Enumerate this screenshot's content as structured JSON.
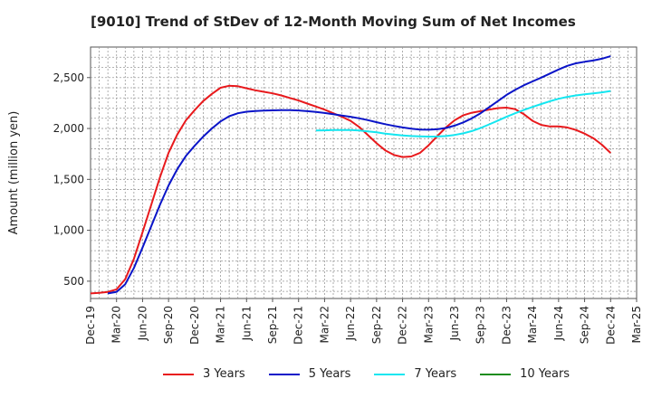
{
  "chart_data": {
    "type": "line",
    "title": "[9010]  Trend of StDev of 12-Month Moving Sum of Net Incomes",
    "ylabel": "Amount (million yen)",
    "xlabel": "",
    "ylim": [
      330,
      2800
    ],
    "yticks": [
      500,
      1000,
      1500,
      2000,
      2500
    ],
    "ytick_labels": [
      "500",
      "1,000",
      "1,500",
      "2,000",
      "2,500"
    ],
    "x_tick_labels": [
      "Dec-19",
      "Mar-20",
      "Jun-20",
      "Sep-20",
      "Dec-20",
      "Mar-21",
      "Jun-21",
      "Sep-21",
      "Dec-21",
      "Mar-22",
      "Jun-22",
      "Sep-22",
      "Dec-22",
      "Mar-23",
      "Jun-23",
      "Sep-23",
      "Dec-23",
      "Mar-24",
      "Jun-24",
      "Sep-24",
      "Dec-24",
      "Mar-25"
    ],
    "grid": true,
    "legend_position": "bottom",
    "series": [
      {
        "name": "3 Years",
        "color": "#e8191c",
        "points": [
          [
            "Dec-19",
            380
          ],
          [
            "Jan-20",
            385
          ],
          [
            "Feb-20",
            395
          ],
          [
            "Mar-20",
            420
          ],
          [
            "Apr-20",
            520
          ],
          [
            "May-20",
            720
          ],
          [
            "Jun-20",
            980
          ],
          [
            "Jul-20",
            1250
          ],
          [
            "Aug-20",
            1520
          ],
          [
            "Sep-20",
            1760
          ],
          [
            "Oct-20",
            1940
          ],
          [
            "Nov-20",
            2080
          ],
          [
            "Dec-20",
            2180
          ],
          [
            "Jan-21",
            2270
          ],
          [
            "Feb-21",
            2340
          ],
          [
            "Mar-21",
            2400
          ],
          [
            "Apr-21",
            2420
          ],
          [
            "May-21",
            2415
          ],
          [
            "Jun-21",
            2395
          ],
          [
            "Jul-21",
            2375
          ],
          [
            "Aug-21",
            2360
          ],
          [
            "Sep-21",
            2345
          ],
          [
            "Oct-21",
            2325
          ],
          [
            "Nov-21",
            2300
          ],
          [
            "Dec-21",
            2275
          ],
          [
            "Jan-22",
            2245
          ],
          [
            "Feb-22",
            2215
          ],
          [
            "Mar-22",
            2185
          ],
          [
            "Apr-22",
            2150
          ],
          [
            "May-22",
            2115
          ],
          [
            "Jun-22",
            2075
          ],
          [
            "Jul-22",
            2015
          ],
          [
            "Aug-22",
            1935
          ],
          [
            "Sep-22",
            1855
          ],
          [
            "Oct-22",
            1785
          ],
          [
            "Nov-22",
            1740
          ],
          [
            "Dec-22",
            1720
          ],
          [
            "Jan-23",
            1725
          ],
          [
            "Feb-23",
            1760
          ],
          [
            "Mar-23",
            1835
          ],
          [
            "Apr-23",
            1925
          ],
          [
            "May-23",
            2010
          ],
          [
            "Jun-23",
            2080
          ],
          [
            "Jul-23",
            2130
          ],
          [
            "Aug-23",
            2155
          ],
          [
            "Sep-23",
            2170
          ],
          [
            "Oct-23",
            2185
          ],
          [
            "Nov-23",
            2200
          ],
          [
            "Dec-23",
            2205
          ],
          [
            "Jan-24",
            2190
          ],
          [
            "Feb-24",
            2140
          ],
          [
            "Mar-24",
            2075
          ],
          [
            "Apr-24",
            2035
          ],
          [
            "May-24",
            2020
          ],
          [
            "Jun-24",
            2020
          ],
          [
            "Jul-24",
            2010
          ],
          [
            "Aug-24",
            1985
          ],
          [
            "Sep-24",
            1950
          ],
          [
            "Oct-24",
            1905
          ],
          [
            "Nov-24",
            1840
          ],
          [
            "Dec-24",
            1760
          ]
        ]
      },
      {
        "name": "5 Years",
        "color": "#0a14c8",
        "points": [
          [
            "Feb-20",
            380
          ],
          [
            "Mar-20",
            395
          ],
          [
            "Apr-20",
            470
          ],
          [
            "May-20",
            630
          ],
          [
            "Jun-20",
            830
          ],
          [
            "Jul-20",
            1040
          ],
          [
            "Aug-20",
            1250
          ],
          [
            "Sep-20",
            1440
          ],
          [
            "Oct-20",
            1600
          ],
          [
            "Nov-20",
            1730
          ],
          [
            "Dec-20",
            1830
          ],
          [
            "Jan-21",
            1920
          ],
          [
            "Feb-21",
            2000
          ],
          [
            "Mar-21",
            2070
          ],
          [
            "Apr-21",
            2120
          ],
          [
            "May-21",
            2150
          ],
          [
            "Jun-21",
            2165
          ],
          [
            "Jul-21",
            2172
          ],
          [
            "Aug-21",
            2176
          ],
          [
            "Sep-21",
            2178
          ],
          [
            "Oct-21",
            2180
          ],
          [
            "Nov-21",
            2180
          ],
          [
            "Dec-21",
            2177
          ],
          [
            "Jan-22",
            2170
          ],
          [
            "Feb-22",
            2162
          ],
          [
            "Mar-22",
            2152
          ],
          [
            "Apr-22",
            2140
          ],
          [
            "May-22",
            2127
          ],
          [
            "Jun-22",
            2115
          ],
          [
            "Jul-22",
            2100
          ],
          [
            "Aug-22",
            2082
          ],
          [
            "Sep-22",
            2062
          ],
          [
            "Oct-22",
            2042
          ],
          [
            "Nov-22",
            2025
          ],
          [
            "Dec-22",
            2010
          ],
          [
            "Jan-23",
            1998
          ],
          [
            "Feb-23",
            1990
          ],
          [
            "Mar-23",
            1988
          ],
          [
            "Apr-23",
            1992
          ],
          [
            "May-23",
            2005
          ],
          [
            "Jun-23",
            2028
          ],
          [
            "Jul-23",
            2060
          ],
          [
            "Aug-23",
            2100
          ],
          [
            "Sep-23",
            2150
          ],
          [
            "Oct-23",
            2210
          ],
          [
            "Nov-23",
            2270
          ],
          [
            "Dec-23",
            2330
          ],
          [
            "Jan-24",
            2380
          ],
          [
            "Feb-24",
            2425
          ],
          [
            "Mar-24",
            2462
          ],
          [
            "Apr-24",
            2500
          ],
          [
            "May-24",
            2540
          ],
          [
            "Jun-24",
            2580
          ],
          [
            "Jul-24",
            2615
          ],
          [
            "Aug-24",
            2640
          ],
          [
            "Sep-24",
            2655
          ],
          [
            "Oct-24",
            2668
          ],
          [
            "Nov-24",
            2685
          ],
          [
            "Dec-24",
            2710
          ]
        ]
      },
      {
        "name": "7 Years",
        "color": "#14e6f0",
        "points": [
          [
            "Feb-22",
            1980
          ],
          [
            "Mar-22",
            1982
          ],
          [
            "Apr-22",
            1984
          ],
          [
            "May-22",
            1985
          ],
          [
            "Jun-22",
            1984
          ],
          [
            "Jul-22",
            1980
          ],
          [
            "Aug-22",
            1972
          ],
          [
            "Sep-22",
            1962
          ],
          [
            "Oct-22",
            1950
          ],
          [
            "Nov-22",
            1940
          ],
          [
            "Dec-22",
            1932
          ],
          [
            "Jan-23",
            1926
          ],
          [
            "Feb-23",
            1922
          ],
          [
            "Mar-23",
            1920
          ],
          [
            "Apr-23",
            1921
          ],
          [
            "May-23",
            1926
          ],
          [
            "Jun-23",
            1936
          ],
          [
            "Jul-23",
            1952
          ],
          [
            "Aug-23",
            1975
          ],
          [
            "Sep-23",
            2005
          ],
          [
            "Oct-23",
            2040
          ],
          [
            "Nov-23",
            2078
          ],
          [
            "Dec-23",
            2115
          ],
          [
            "Jan-24",
            2150
          ],
          [
            "Feb-24",
            2182
          ],
          [
            "Mar-24",
            2212
          ],
          [
            "Apr-24",
            2240
          ],
          [
            "May-24",
            2268
          ],
          [
            "Jun-24",
            2292
          ],
          [
            "Jul-24",
            2310
          ],
          [
            "Aug-24",
            2325
          ],
          [
            "Sep-24",
            2336
          ],
          [
            "Oct-24",
            2345
          ],
          [
            "Nov-24",
            2355
          ],
          [
            "Dec-24",
            2368
          ]
        ]
      },
      {
        "name": "10 Years",
        "color": "#1e8c1e",
        "points": []
      }
    ]
  }
}
